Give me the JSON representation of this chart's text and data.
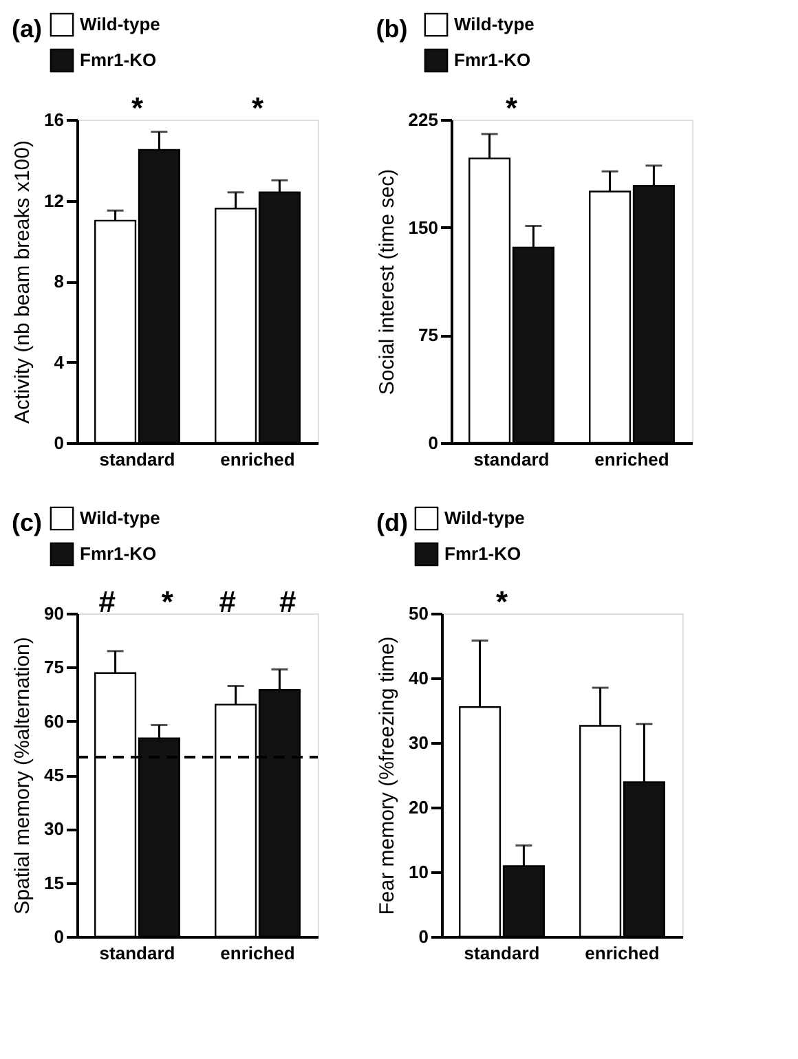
{
  "chart_data": [
    {
      "type": "bar",
      "title": "(a)",
      "ylabel": "Activity (nb beam breaks x100)",
      "categories": [
        "standard",
        "enriched"
      ],
      "series": [
        {
          "name": "Wild-type",
          "color": "#ffffff",
          "values": [
            11.0,
            11.6
          ],
          "errors": [
            [
              11.0,
              11.5
            ],
            [
              11.6,
              12.4
            ]
          ]
        },
        {
          "name": "Fmr1-KO",
          "color": "#111111",
          "values": [
            14.5,
            12.4
          ],
          "errors": [
            [
              14.5,
              15.4
            ],
            [
              12.4,
              13.0
            ]
          ]
        }
      ],
      "ylim": [
        0,
        16
      ],
      "yticks": [
        0,
        4,
        8,
        12,
        16
      ],
      "legend": "top left",
      "annotations": [
        "*",
        "*"
      ]
    },
    {
      "type": "bar",
      "title": "(b)",
      "ylabel": "Social interest (time sec)",
      "categories": [
        "standard",
        "enriched"
      ],
      "series": [
        {
          "name": "Wild-type",
          "color": "#ffffff",
          "values": [
            198,
            175
          ],
          "errors": [
            [
              198,
              215
            ],
            [
              175,
              189
            ]
          ]
        },
        {
          "name": "Fmr1-KO",
          "color": "#111111",
          "values": [
            136,
            179
          ],
          "errors": [
            [
              136,
              151
            ],
            [
              179,
              193
            ]
          ]
        }
      ],
      "ylim": [
        0,
        225
      ],
      "yticks": [
        0,
        75,
        150,
        225
      ],
      "legend": "top left",
      "annotations": [
        "*"
      ]
    },
    {
      "type": "bar",
      "title": "(c)",
      "ylabel": "Spatial memory (%alternation)",
      "categories": [
        "standard",
        "enriched"
      ],
      "series": [
        {
          "name": "Wild-type",
          "color": "#ffffff",
          "values": [
            73.4,
            64.6
          ],
          "errors": [
            [
              73.4,
              79.5
            ],
            [
              64.6,
              69.8
            ]
          ]
        },
        {
          "name": "Fmr1-KO",
          "color": "#111111",
          "values": [
            55.2,
            68.7
          ],
          "errors": [
            [
              55.2,
              58.9
            ],
            [
              68.7,
              74.4
            ]
          ]
        }
      ],
      "ylim": [
        0,
        90
      ],
      "yticks": [
        0,
        15,
        30,
        45,
        60,
        75,
        90
      ],
      "legend": "top left",
      "ref_lines": [
        {
          "axis": "y",
          "value": 50,
          "line_style": "dashed",
          "color": "#000000"
        }
      ],
      "annotations": [
        "#",
        "*",
        "#",
        "#"
      ]
    },
    {
      "type": "bar",
      "title": "(d)",
      "ylabel": "Fear memory (%freezing time)",
      "categories": [
        "standard",
        "enriched"
      ],
      "series": [
        {
          "name": "Wild-type",
          "color": "#ffffff",
          "values": [
            35.5,
            32.6
          ],
          "errors": [
            [
              35.5,
              45.8
            ],
            [
              32.6,
              38.5
            ]
          ]
        },
        {
          "name": "Fmr1-KO",
          "color": "#111111",
          "values": [
            10.9,
            23.9
          ],
          "errors": [
            [
              10.9,
              14.1
            ],
            [
              23.9,
              32.9
            ]
          ]
        }
      ],
      "ylim": [
        0,
        50
      ],
      "yticks": [
        0,
        10,
        20,
        30,
        40,
        50
      ],
      "legend": "top left",
      "annotations": [
        "*"
      ]
    }
  ]
}
